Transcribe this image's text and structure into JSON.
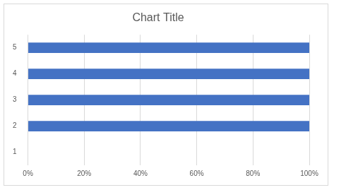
{
  "chart_data": {
    "type": "bar",
    "title": "Chart Title",
    "orientation": "horizontal",
    "categories": [
      "1",
      "2",
      "3",
      "4",
      "5"
    ],
    "values": [
      0,
      100,
      100,
      100,
      100
    ],
    "color": "#4472c4",
    "xlim": [
      0,
      100
    ],
    "xticks": [
      {
        "value": 0,
        "label": "0%"
      },
      {
        "value": 20,
        "label": "20%"
      },
      {
        "value": 40,
        "label": "40%"
      },
      {
        "value": 60,
        "label": "60%"
      },
      {
        "value": 80,
        "label": "80%"
      },
      {
        "value": 100,
        "label": "100%"
      }
    ],
    "grid": true
  }
}
